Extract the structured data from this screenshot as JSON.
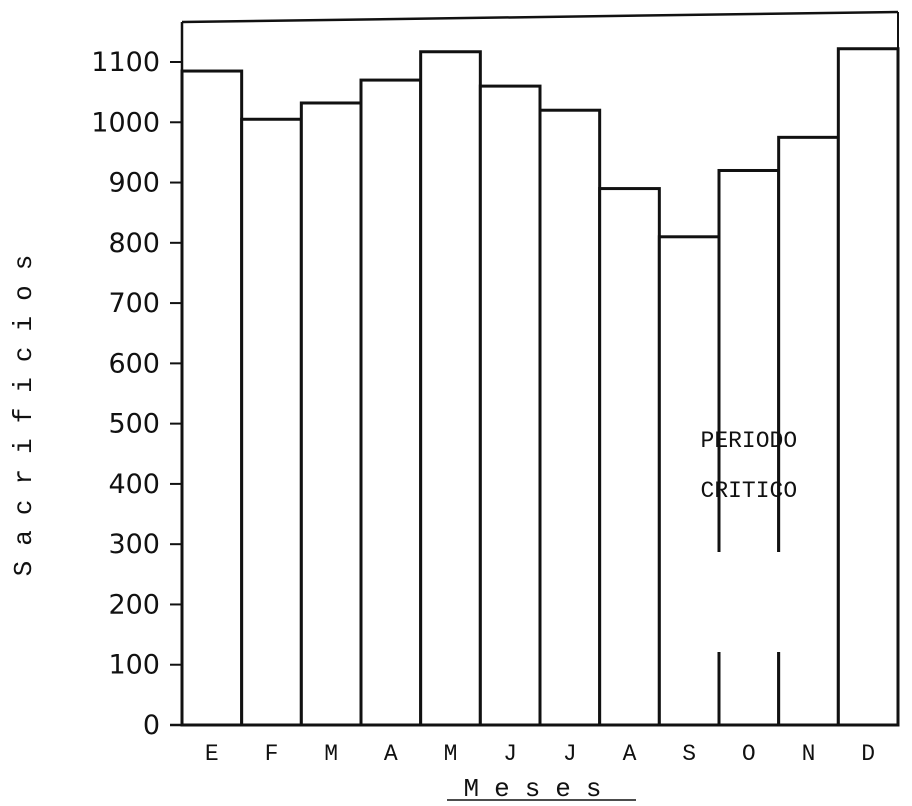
{
  "chart_data": {
    "type": "bar",
    "title": "",
    "xlabel": "Meses",
    "ylabel": "Sacrificios",
    "categories": [
      "E",
      "F",
      "M",
      "A",
      "M",
      "J",
      "J",
      "A",
      "S",
      "O",
      "N",
      "D"
    ],
    "values": [
      1085,
      1005,
      1032,
      1070,
      1117,
      1060,
      1020,
      890,
      810,
      920,
      975,
      1122
    ],
    "ylim": [
      0,
      1100
    ],
    "yticks": [
      0,
      100,
      200,
      300,
      400,
      500,
      600,
      700,
      800,
      900,
      1000,
      1100
    ],
    "grid": false,
    "annotations": [
      {
        "text": "PERIODO CRITICO",
        "lines": [
          "PERIODO",
          "CRITICO"
        ],
        "category_span": [
          "S",
          "O"
        ]
      }
    ],
    "colors": {
      "bar_fill": "#ffffff",
      "line": "#111111"
    }
  }
}
